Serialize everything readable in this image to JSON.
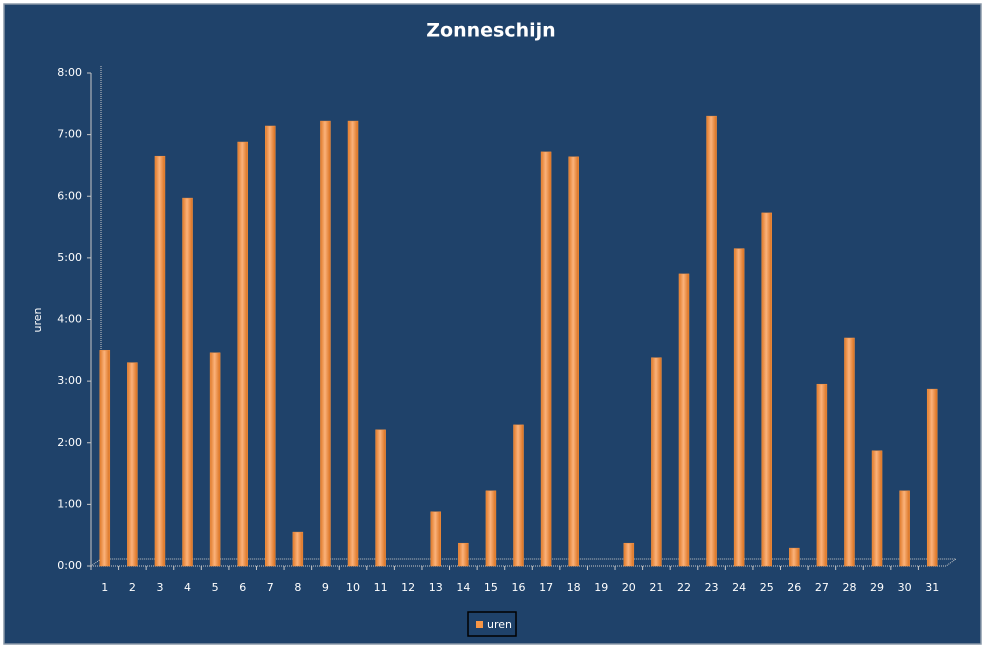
{
  "chart_data": {
    "type": "bar",
    "title": "Zonneschijn",
    "y_label": "uren",
    "categories": [
      "1",
      "2",
      "3",
      "4",
      "5",
      "6",
      "7",
      "8",
      "9",
      "10",
      "11",
      "12",
      "13",
      "14",
      "15",
      "16",
      "17",
      "18",
      "19",
      "20",
      "21",
      "22",
      "23",
      "24",
      "25",
      "26",
      "27",
      "28",
      "29",
      "30",
      "31"
    ],
    "series": [
      {
        "name": "uren",
        "color": "#f79646",
        "values": [
          3.5,
          3.3,
          6.65,
          5.97,
          3.46,
          6.88,
          7.14,
          0.55,
          7.22,
          7.22,
          2.21,
          0,
          0.88,
          0.37,
          1.22,
          2.29,
          6.72,
          6.64,
          0,
          0.37,
          3.38,
          4.74,
          7.3,
          5.15,
          5.73,
          0.29,
          2.95,
          3.7,
          1.87,
          1.22,
          2.87
        ]
      }
    ],
    "ylim": [
      0,
      8
    ],
    "yticks": [
      {
        "value": 0,
        "label": "0:00"
      },
      {
        "value": 1,
        "label": "1:00"
      },
      {
        "value": 2,
        "label": "2:00"
      },
      {
        "value": 3,
        "label": "3:00"
      },
      {
        "value": 4,
        "label": "4:00"
      },
      {
        "value": 5,
        "label": "5:00"
      },
      {
        "value": 6,
        "label": "6:00"
      },
      {
        "value": 7,
        "label": "7:00"
      },
      {
        "value": 8,
        "label": "8:00"
      }
    ],
    "grid": false,
    "legend": "bottom"
  }
}
